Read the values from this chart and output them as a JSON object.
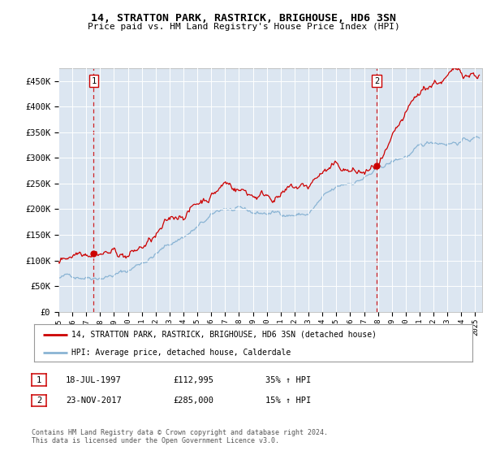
{
  "title": "14, STRATTON PARK, RASTRICK, BRIGHOUSE, HD6 3SN",
  "subtitle": "Price paid vs. HM Land Registry's House Price Index (HPI)",
  "background_color": "#dce6f1",
  "plot_bg_color": "#dce6f1",
  "outer_bg_color": "#ffffff",
  "hpi_line_color": "#8ab4d4",
  "price_line_color": "#cc0000",
  "marker_color": "#cc0000",
  "dashed_line_color": "#cc0000",
  "ylim": [
    0,
    475000
  ],
  "yticks": [
    0,
    50000,
    100000,
    150000,
    200000,
    250000,
    300000,
    350000,
    400000,
    450000
  ],
  "ytick_labels": [
    "£0",
    "£50K",
    "£100K",
    "£150K",
    "£200K",
    "£250K",
    "£300K",
    "£350K",
    "£400K",
    "£450K"
  ],
  "sale1_date": 1997.54,
  "sale1_price": 112995,
  "sale1_label": "1",
  "sale2_date": 2017.9,
  "sale2_price": 285000,
  "sale2_label": "2",
  "legend_entries": [
    "14, STRATTON PARK, RASTRICK, BRIGHOUSE, HD6 3SN (detached house)",
    "HPI: Average price, detached house, Calderdale"
  ],
  "table_rows": [
    [
      "1",
      "18-JUL-1997",
      "£112,995",
      "35% ↑ HPI"
    ],
    [
      "2",
      "23-NOV-2017",
      "£285,000",
      "15% ↑ HPI"
    ]
  ],
  "footer": "Contains HM Land Registry data © Crown copyright and database right 2024.\nThis data is licensed under the Open Government Licence v3.0.",
  "xmin": 1995.0,
  "xmax": 2025.5
}
